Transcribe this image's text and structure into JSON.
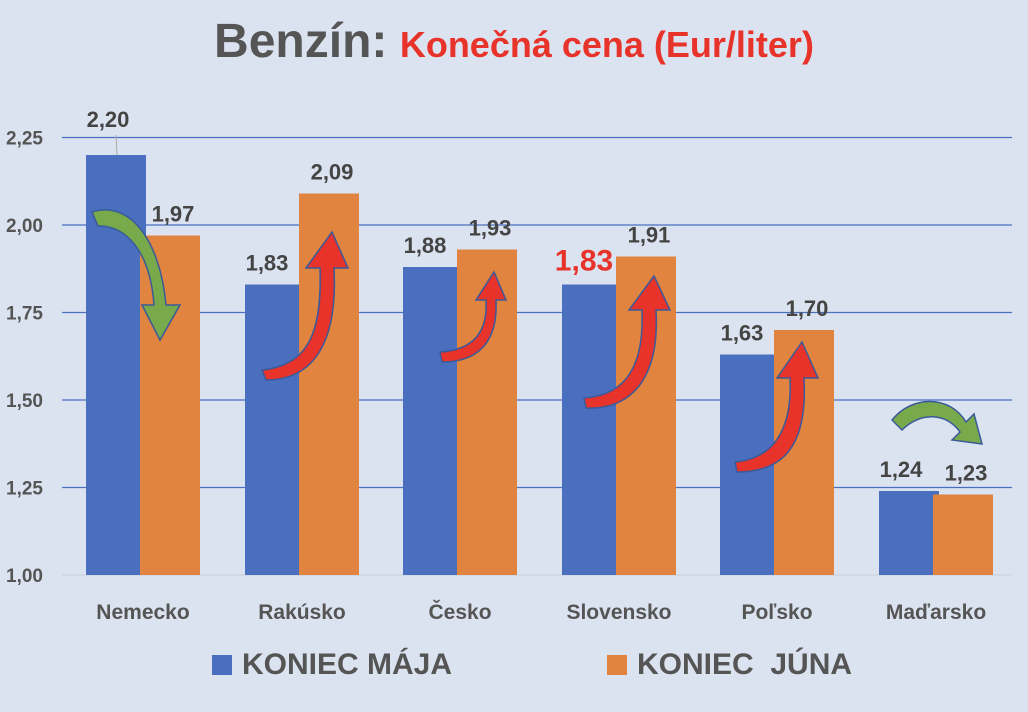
{
  "title": {
    "part1": "Benzín:",
    "part2": "Konečná cena (Eur/liter)"
  },
  "chart_data": {
    "type": "bar",
    "title": "Benzín: Konečná cena (Eur/liter)",
    "categories": [
      "Nemecko",
      "Rakúsko",
      "Česko",
      "Slovensko",
      "Poľsko",
      "Maďarsko"
    ],
    "series": [
      {
        "name": "KONIEC MÁJA",
        "color": "#4a6fbf",
        "values": [
          2.2,
          1.83,
          1.88,
          1.83,
          1.63,
          1.24
        ],
        "labels": [
          "2,20",
          "1,83",
          "1,88",
          "1,83",
          "1,63",
          "1,24"
        ]
      },
      {
        "name": "KONIEC  JÚNA",
        "color": "#e0843f",
        "values": [
          1.97,
          2.09,
          1.93,
          1.91,
          1.7,
          1.23
        ],
        "labels": [
          "1,97",
          "2,09",
          "1,93",
          "1,91",
          "1,70",
          "1,23"
        ]
      }
    ],
    "highlighted_label": {
      "category": "Slovensko",
      "series": 0,
      "color": "#e8332a"
    },
    "ylim": [
      1.0,
      2.25
    ],
    "yticks": [
      "1,00",
      "1,25",
      "1,50",
      "1,75",
      "2,00",
      "2,25"
    ],
    "grid": true,
    "legend": "bottom",
    "trend_arrows": [
      "down",
      "up",
      "up",
      "up",
      "up",
      "down"
    ],
    "arrow_colors": {
      "up": "#e8332a",
      "down": "#78a94a"
    }
  }
}
